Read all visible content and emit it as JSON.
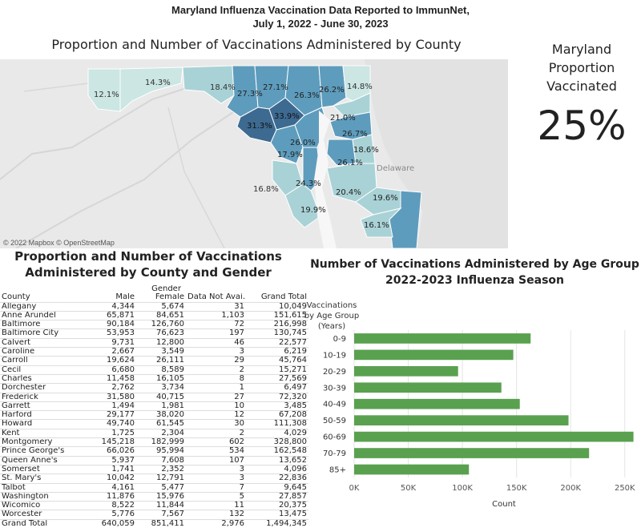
{
  "main_title": {
    "line1": "Maryland Influenza Vaccination Data Reported to ImmunNet,",
    "line2": "July 1, 2022 - June 30, 2023"
  },
  "map": {
    "title": "Proportion and Number of Vaccinations Administered by County",
    "attribution": "© 2022 Mapbox © OpenStreetMap",
    "place_labels": [
      "Delaware"
    ],
    "county_labels": [
      "12.1%",
      "14.3%",
      "18.4%",
      "27.3%",
      "27.1%",
      "26.3%",
      "26.2%",
      "14.8%",
      "31.3%",
      "33.9%",
      "21.0%",
      "26.7%",
      "18.6%",
      "26.0%",
      "17.9%",
      "26.1%",
      "16.8%",
      "24.3%",
      "20.4%",
      "19.6%",
      "19.9%",
      "16.1%"
    ],
    "colors": {
      "dark": "#3d6a91",
      "mid": "#5e9cbd",
      "light": "#a9d2d6",
      "palest": "#cbe6e3",
      "water": "#f7f7f7",
      "land": "#e9e9e9"
    }
  },
  "proportion": {
    "title_lines": [
      "Maryland",
      "Proportion",
      "Vaccinated"
    ],
    "value": "25%"
  },
  "table": {
    "title_line1": "Proportion and Number of Vaccinations",
    "title_line2": "Administered by County and Gender",
    "group_header": "Gender",
    "columns": [
      "County",
      "Male",
      "Female",
      "Data Not Avai..",
      "Grand Total"
    ],
    "rows": [
      [
        "Allegany",
        "4,344",
        "5,674",
        "31",
        "10,049"
      ],
      [
        "Anne Arundel",
        "65,871",
        "84,651",
        "1,103",
        "151,615"
      ],
      [
        "Baltimore",
        "90,184",
        "126,760",
        "72",
        "216,998"
      ],
      [
        "Baltimore City",
        "53,953",
        "76,623",
        "197",
        "130,745"
      ],
      [
        "Calvert",
        "9,731",
        "12,800",
        "46",
        "22,577"
      ],
      [
        "Caroline",
        "2,667",
        "3,549",
        "3",
        "6,219"
      ],
      [
        "Carroll",
        "19,624",
        "26,111",
        "29",
        "45,764"
      ],
      [
        "Cecil",
        "6,680",
        "8,589",
        "2",
        "15,271"
      ],
      [
        "Charles",
        "11,458",
        "16,105",
        "8",
        "27,569"
      ],
      [
        "Dorchester",
        "2,762",
        "3,734",
        "1",
        "6,497"
      ],
      [
        "Frederick",
        "31,580",
        "40,715",
        "27",
        "72,320"
      ],
      [
        "Garrett",
        "1,494",
        "1,981",
        "10",
        "3,485"
      ],
      [
        "Harford",
        "29,177",
        "38,020",
        "12",
        "67,208"
      ],
      [
        "Howard",
        "49,740",
        "61,545",
        "30",
        "111,308"
      ],
      [
        "Kent",
        "1,725",
        "2,304",
        "2",
        "4,029"
      ],
      [
        "Montgomery",
        "145,218",
        "182,999",
        "602",
        "328,800"
      ],
      [
        "Prince George's",
        "66,026",
        "95,994",
        "534",
        "162,548"
      ],
      [
        "Queen Anne's",
        "5,937",
        "7,608",
        "107",
        "13,652"
      ],
      [
        "Somerset",
        "1,741",
        "2,352",
        "3",
        "4,096"
      ],
      [
        "St. Mary's",
        "10,042",
        "12,791",
        "3",
        "22,836"
      ],
      [
        "Talbot",
        "4,161",
        "5,477",
        "7",
        "9,645"
      ],
      [
        "Washington",
        "11,876",
        "15,976",
        "5",
        "27,857"
      ],
      [
        "Wicomico",
        "8,522",
        "11,844",
        "11",
        "20,375"
      ],
      [
        "Worcester",
        "5,776",
        "7,567",
        "132",
        "13,475"
      ],
      [
        "Grand Total",
        "640,059",
        "851,411",
        "2,976",
        "1,494,345"
      ]
    ]
  },
  "chart_data": {
    "type": "bar",
    "orientation": "horizontal",
    "title_line1": "Number of Vaccinations Administered by Age Group",
    "title_line2": "2022-2023 Influenza Season",
    "ylabel_lines": [
      "Vaccinations",
      "by Age Group",
      "(Years)"
    ],
    "xlabel": "Count",
    "categories": [
      "0-9",
      "10-19",
      "20-29",
      "30-39",
      "40-49",
      "50-59",
      "60-69",
      "70-79",
      "85+"
    ],
    "values": [
      163000,
      147000,
      96000,
      136000,
      153000,
      198000,
      258000,
      217000,
      106000
    ],
    "xlim": [
      0,
      250000
    ],
    "xticks": [
      0,
      50000,
      100000,
      150000,
      200000,
      250000
    ],
    "xtick_labels": [
      "0K",
      "50K",
      "100K",
      "150K",
      "200K",
      "250K"
    ],
    "bar_color": "#59a14f",
    "grid": true
  }
}
